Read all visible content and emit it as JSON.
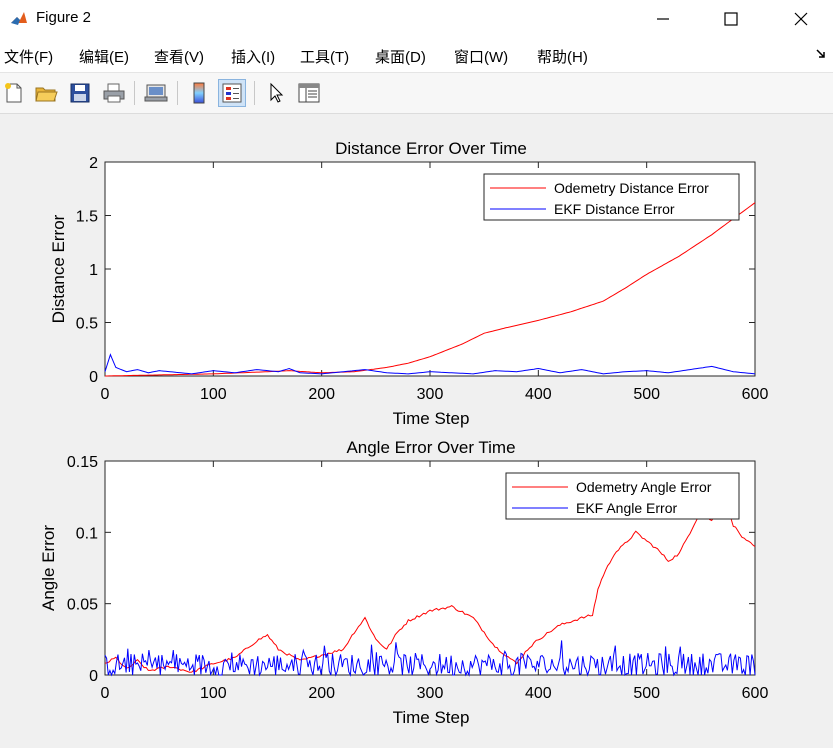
{
  "window": {
    "title": "Figure 2",
    "controls": {
      "minimize": "—",
      "maximize": "☐",
      "close": "✕"
    }
  },
  "menu": {
    "items": [
      "文件(F)",
      "编辑(E)",
      "查看(V)",
      "插入(I)",
      "工具(T)",
      "桌面(D)",
      "窗口(W)",
      "帮助(H)"
    ]
  },
  "toolbar": {
    "icons": [
      "new-figure-icon",
      "open-file-icon",
      "save-icon",
      "print-icon",
      "link-plot-icon",
      "colorbar-icon",
      "legend-icon",
      "pointer-icon",
      "property-editor-icon"
    ],
    "active": "legend-icon"
  },
  "chart_data": [
    {
      "type": "line",
      "title": "Distance Error Over Time",
      "xlabel": "Time Step",
      "ylabel": "Distance Error",
      "xlim": [
        0,
        600
      ],
      "ylim": [
        0,
        2
      ],
      "xticks": [
        "0",
        "100",
        "200",
        "300",
        "400",
        "500",
        "600"
      ],
      "yticks": [
        "0",
        "0.5",
        "1",
        "1.5",
        "2"
      ],
      "legend_position": "top-right",
      "series": [
        {
          "name": "Odemetry Distance Error",
          "color": "#ff0000",
          "x": [
            0,
            50,
            100,
            150,
            170,
            200,
            230,
            260,
            280,
            300,
            330,
            350,
            370,
            400,
            430,
            460,
            480,
            500,
            530,
            560,
            600
          ],
          "y": [
            0.0,
            0.01,
            0.02,
            0.04,
            0.05,
            0.03,
            0.04,
            0.08,
            0.12,
            0.18,
            0.3,
            0.4,
            0.45,
            0.52,
            0.6,
            0.7,
            0.82,
            0.95,
            1.12,
            1.32,
            1.62
          ]
        },
        {
          "name": "EKF Distance Error",
          "color": "#0000ff",
          "x": [
            0,
            5,
            10,
            20,
            30,
            40,
            50,
            60,
            80,
            100,
            120,
            140,
            160,
            170,
            180,
            200,
            220,
            240,
            260,
            280,
            300,
            320,
            340,
            360,
            380,
            400,
            420,
            440,
            460,
            480,
            500,
            520,
            540,
            560,
            580,
            600
          ],
          "y": [
            0.04,
            0.2,
            0.08,
            0.04,
            0.06,
            0.03,
            0.05,
            0.04,
            0.02,
            0.05,
            0.03,
            0.06,
            0.04,
            0.07,
            0.03,
            0.02,
            0.04,
            0.06,
            0.03,
            0.02,
            0.04,
            0.03,
            0.02,
            0.05,
            0.04,
            0.07,
            0.03,
            0.06,
            0.02,
            0.04,
            0.05,
            0.03,
            0.06,
            0.09,
            0.04,
            0.02
          ]
        }
      ]
    },
    {
      "type": "line",
      "title": "Angle Error Over Time",
      "xlabel": "Time Step",
      "ylabel": "Angle Error",
      "xlim": [
        0,
        600
      ],
      "ylim": [
        0,
        0.15
      ],
      "xticks": [
        "0",
        "100",
        "200",
        "300",
        "400",
        "500",
        "600"
      ],
      "yticks": [
        "0",
        "0.05",
        "0.1",
        "0.15"
      ],
      "legend_position": "top-right",
      "series": [
        {
          "name": "Odemetry Angle Error",
          "color": "#ff0000",
          "x": [
            0,
            10,
            20,
            30,
            40,
            60,
            80,
            100,
            120,
            140,
            150,
            160,
            180,
            200,
            220,
            230,
            240,
            250,
            260,
            270,
            280,
            300,
            320,
            340,
            350,
            360,
            370,
            380,
            390,
            400,
            420,
            440,
            450,
            455,
            460,
            470,
            480,
            490,
            500,
            510,
            520,
            530,
            540,
            550,
            560,
            570,
            575,
            580,
            590,
            600
          ],
          "y": [
            0.008,
            0.012,
            0.004,
            0.01,
            0.003,
            0.006,
            0.002,
            0.008,
            0.012,
            0.024,
            0.028,
            0.018,
            0.01,
            0.014,
            0.018,
            0.03,
            0.04,
            0.025,
            0.018,
            0.03,
            0.038,
            0.045,
            0.048,
            0.04,
            0.03,
            0.02,
            0.014,
            0.008,
            0.018,
            0.025,
            0.035,
            0.04,
            0.042,
            0.06,
            0.07,
            0.085,
            0.092,
            0.1,
            0.094,
            0.088,
            0.08,
            0.085,
            0.1,
            0.115,
            0.108,
            0.12,
            0.118,
            0.105,
            0.095,
            0.09
          ]
        },
        {
          "name": "EKF Angle Error",
          "color": "#0000ff",
          "noisy": true,
          "baseline": 0.007,
          "amplitude": 0.012,
          "points": 600
        }
      ]
    }
  ]
}
